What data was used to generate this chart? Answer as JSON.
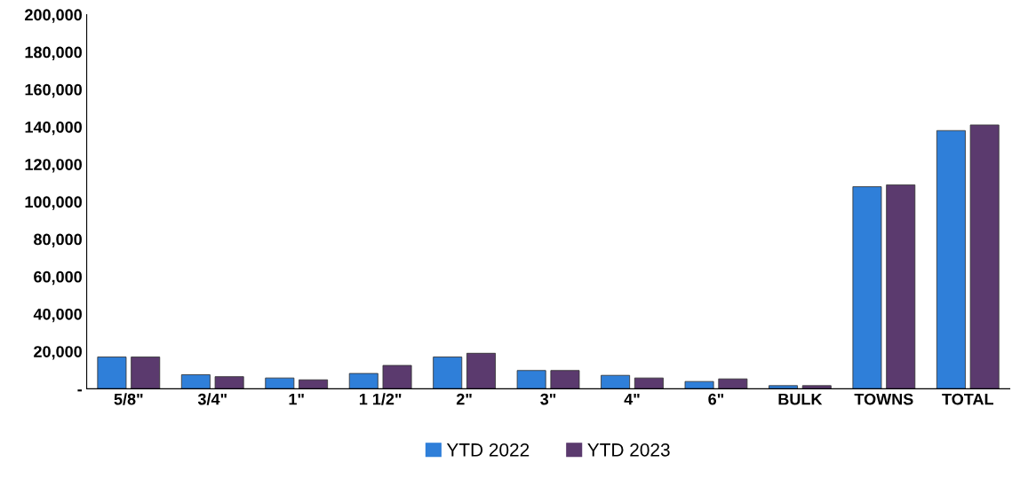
{
  "chart_data": {
    "type": "bar",
    "categories": [
      "5/8\"",
      "3/4\"",
      "1\"",
      "1 1/2\"",
      "2\"",
      "3\"",
      "4\"",
      "6\"",
      "BULK",
      "TOWNS",
      "TOTAL"
    ],
    "series": [
      {
        "name": "YTD 2022",
        "color": "#2f7fd9",
        "values": [
          17000,
          7500,
          5800,
          8200,
          17000,
          9800,
          7200,
          3900,
          1700,
          108000,
          138000
        ]
      },
      {
        "name": "YTD 2023",
        "color": "#5b3a6e",
        "values": [
          17000,
          6500,
          4800,
          12500,
          19000,
          9800,
          5800,
          5300,
          1700,
          109000,
          141000
        ]
      }
    ],
    "ylim": [
      0,
      200000
    ],
    "yticks": [
      {
        "value": 0,
        "label": "-"
      },
      {
        "value": 20000,
        "label": "20,000"
      },
      {
        "value": 40000,
        "label": "40,000"
      },
      {
        "value": 60000,
        "label": "60,000"
      },
      {
        "value": 80000,
        "label": "80,000"
      },
      {
        "value": 100000,
        "label": "100,000"
      },
      {
        "value": 120000,
        "label": "120,000"
      },
      {
        "value": 140000,
        "label": "140,000"
      },
      {
        "value": 160000,
        "label": "160,000"
      },
      {
        "value": 180000,
        "label": "180,000"
      },
      {
        "value": 200000,
        "label": "200,000"
      }
    ],
    "grid": false,
    "legend": "bottom"
  }
}
